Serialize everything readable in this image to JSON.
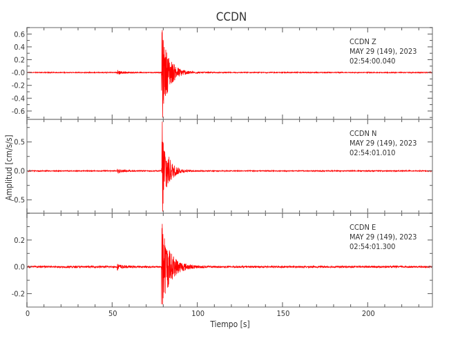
{
  "chart_data": {
    "type": "line",
    "title": "CCDN",
    "xlabel": "Tiempo [s]",
    "ylabel": "Amplitud [cm/s/s]",
    "xlim": [
      0,
      238
    ],
    "xticks": [
      0,
      50,
      100,
      150,
      200
    ],
    "trace_color": "#ff0000",
    "grid": false,
    "panels": [
      {
        "component": "Z",
        "label": [
          "CCDN   Z",
          "MAY 29 (149), 2023",
          "02:54:00.040"
        ],
        "ylim": [
          -0.73,
          0.7
        ],
        "yticks": [
          0.6,
          0.4,
          0.2,
          -0.0,
          -0.2,
          -0.4,
          -0.6
        ],
        "ytick_labels": [
          "0.6",
          "0.4",
          "0.2",
          "-0.0",
          "-0.2",
          "-0.4",
          "-0.6"
        ],
        "noise_amplitude": 0.008,
        "events": [
          {
            "time": 53,
            "peak": 0.04,
            "decay": 3
          },
          {
            "time": 79,
            "peak": 0.66,
            "decay": 4.5
          }
        ],
        "min_peak": -0.7
      },
      {
        "component": "N",
        "label": [
          "CCDN   N",
          "MAY 29 (149), 2023",
          "02:54:01.010"
        ],
        "ylim": [
          -0.73,
          0.89
        ],
        "yticks": [
          0.5,
          0.0,
          -0.5
        ],
        "ytick_labels": [
          "0.5",
          "0.0",
          "-0.5"
        ],
        "noise_amplitude": 0.01,
        "events": [
          {
            "time": 53,
            "peak": 0.04,
            "decay": 3
          },
          {
            "time": 79,
            "peak": 0.85,
            "decay": 3.5
          }
        ],
        "min_peak": -0.7
      },
      {
        "component": "E",
        "label": [
          "CCDN   E",
          "MAY 29 (149), 2023",
          "02:54:01.300"
        ],
        "ylim": [
          -0.3,
          0.4
        ],
        "yticks": [
          0.2,
          0.0,
          -0.2
        ],
        "ytick_labels": [
          "0.2",
          "0.0",
          "-0.2"
        ],
        "noise_amplitude": 0.008,
        "events": [
          {
            "time": 53,
            "peak": 0.02,
            "decay": 3
          },
          {
            "time": 79,
            "peak": 0.32,
            "decay": 5
          }
        ],
        "min_peak": -0.28
      }
    ]
  }
}
